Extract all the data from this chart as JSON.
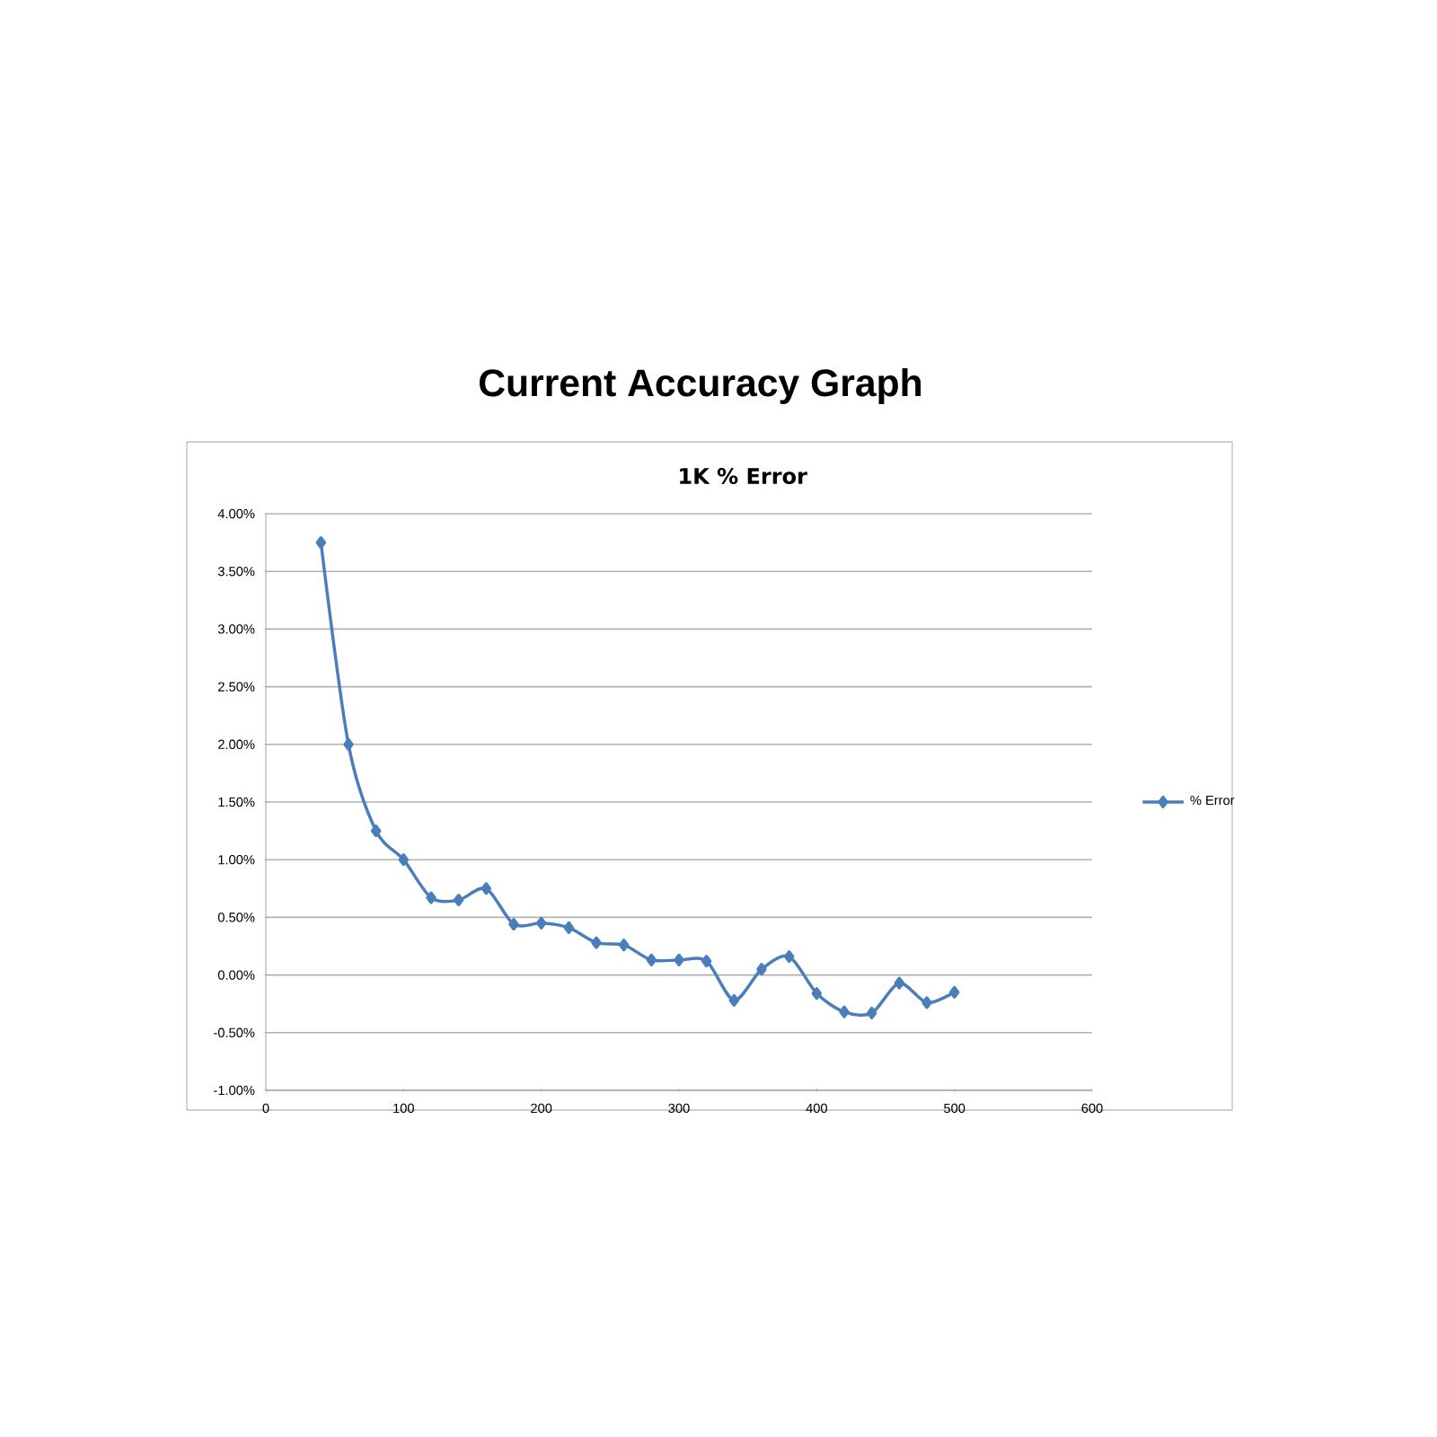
{
  "chart_data": {
    "type": "line",
    "title": "Current Accuracy Graph",
    "subtitle": "1K % Error",
    "x": [
      40,
      60,
      80,
      100,
      120,
      140,
      160,
      180,
      200,
      220,
      240,
      260,
      280,
      300,
      320,
      340,
      360,
      380,
      400,
      420,
      440,
      460,
      480,
      500
    ],
    "series": [
      {
        "name": "% Error",
        "color": "#4a7ebb",
        "values": [
          3.75,
          2.0,
          1.25,
          1.0,
          0.67,
          0.65,
          0.75,
          0.44,
          0.45,
          0.41,
          0.28,
          0.26,
          0.13,
          0.13,
          0.12,
          -0.22,
          0.05,
          0.16,
          -0.16,
          -0.32,
          -0.33,
          -0.07,
          -0.24,
          -0.15
        ]
      }
    ],
    "xlim": [
      0,
      600
    ],
    "xticks": [
      0,
      100,
      200,
      300,
      400,
      500,
      600
    ],
    "ylim": [
      -1,
      4
    ],
    "yticks": [
      {
        "value": -1,
        "label": "-1.00%"
      },
      {
        "value": -0.5,
        "label": "-0.50%"
      },
      {
        "value": 0,
        "label": "0.00%"
      },
      {
        "value": 0.5,
        "label": "0.50%"
      },
      {
        "value": 1,
        "label": "1.00%"
      },
      {
        "value": 1.5,
        "label": "1.50%"
      },
      {
        "value": 2,
        "label": "2.00%"
      },
      {
        "value": 2.5,
        "label": "2.50%"
      },
      {
        "value": 3,
        "label": "3.00%"
      },
      {
        "value": 3.5,
        "label": "3.50%"
      },
      {
        "value": 4,
        "label": "4.00%"
      }
    ],
    "grid": "y",
    "legend": "right",
    "marker": "diamond"
  }
}
